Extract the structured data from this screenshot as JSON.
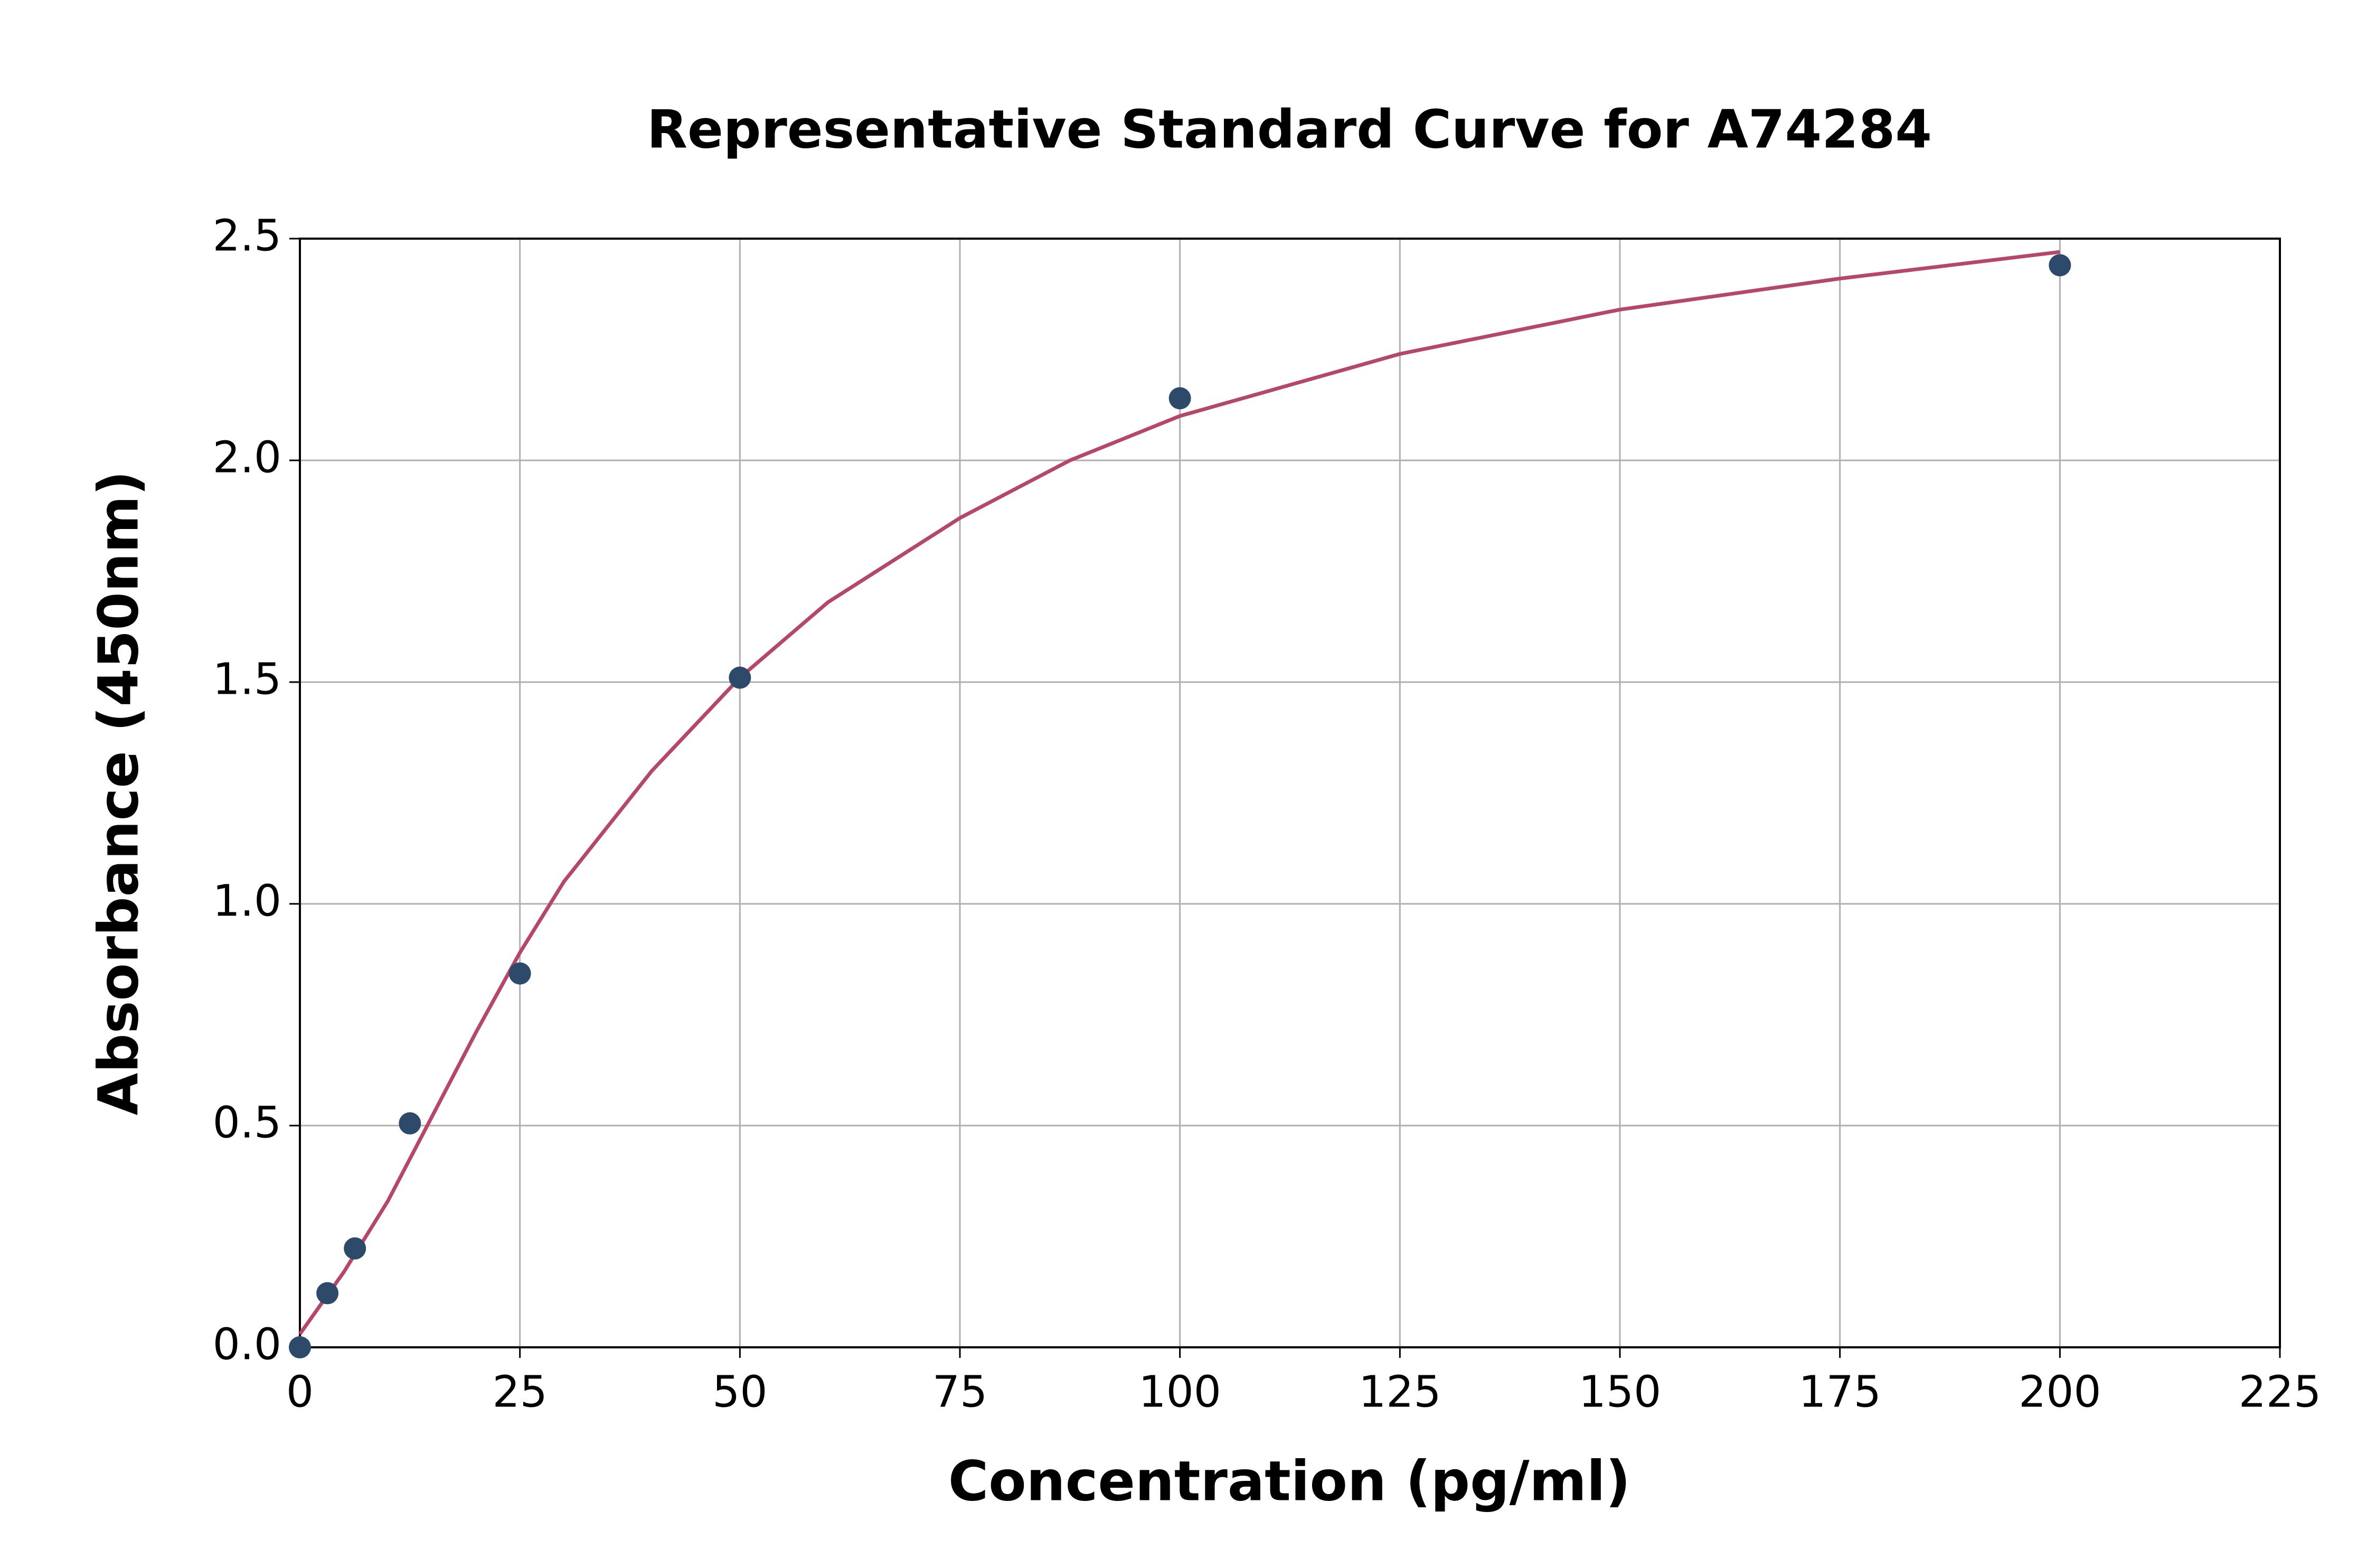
{
  "chart_data": {
    "type": "scatter",
    "title": "Representative Standard Curve for A74284",
    "x_label": "Concentration (pg/ml)",
    "y_label": "Absorbance (450nm)",
    "xlim": [
      0,
      225
    ],
    "xticks": [
      0,
      25,
      50,
      75,
      100,
      125,
      150,
      175,
      200,
      225
    ],
    "ylim": [
      0,
      2.5
    ],
    "yticks": [
      {
        "value": 0,
        "label": "0.0"
      },
      0.5,
      {
        "value": 1,
        "label": "1.0"
      },
      1.5,
      {
        "value": 2,
        "label": "2.0"
      },
      2.5
    ],
    "grid": true,
    "series": [
      {
        "type": "scatter",
        "color": "#2e4a6b",
        "x": [
          0,
          3.125,
          6.25,
          12.5,
          25,
          50,
          100,
          200
        ],
        "values": [
          0,
          0.122,
          0.223,
          0.505,
          0.843,
          1.51,
          2.14,
          2.44
        ]
      },
      {
        "type": "line",
        "color": "#b5476a",
        "x": [
          0,
          5,
          10,
          15,
          20,
          25,
          30,
          40,
          50,
          60,
          75,
          87.5,
          100,
          125,
          150,
          175,
          200
        ],
        "values": [
          0.03,
          0.17,
          0.33,
          0.52,
          0.71,
          0.89,
          1.05,
          1.3,
          1.51,
          1.68,
          1.87,
          2.0,
          2.1,
          2.24,
          2.34,
          2.41,
          2.47
        ]
      }
    ]
  }
}
